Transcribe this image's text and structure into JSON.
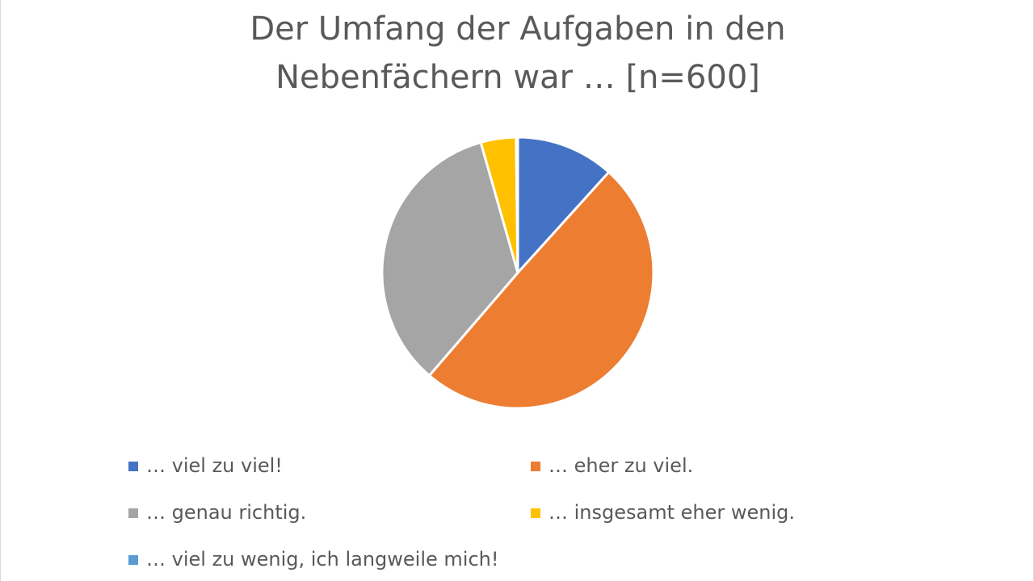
{
  "chart_data": {
    "type": "pie",
    "title": "Der Umfang der Aufgaben in den Nebenfächern war … [n=600]",
    "categories": [
      "… viel zu viel!",
      "… eher zu viel.",
      "… genau richtig.",
      "… insgesamt eher wenig.",
      "… viel zu wenig, ich langweile mich!"
    ],
    "values": [
      11.7,
      49.6,
      34.3,
      4.2,
      0.2
    ],
    "colors": [
      "#4472c4",
      "#ed7d31",
      "#a5a5a5",
      "#ffc000",
      "#5b9bd5"
    ],
    "legend": "bottom"
  }
}
